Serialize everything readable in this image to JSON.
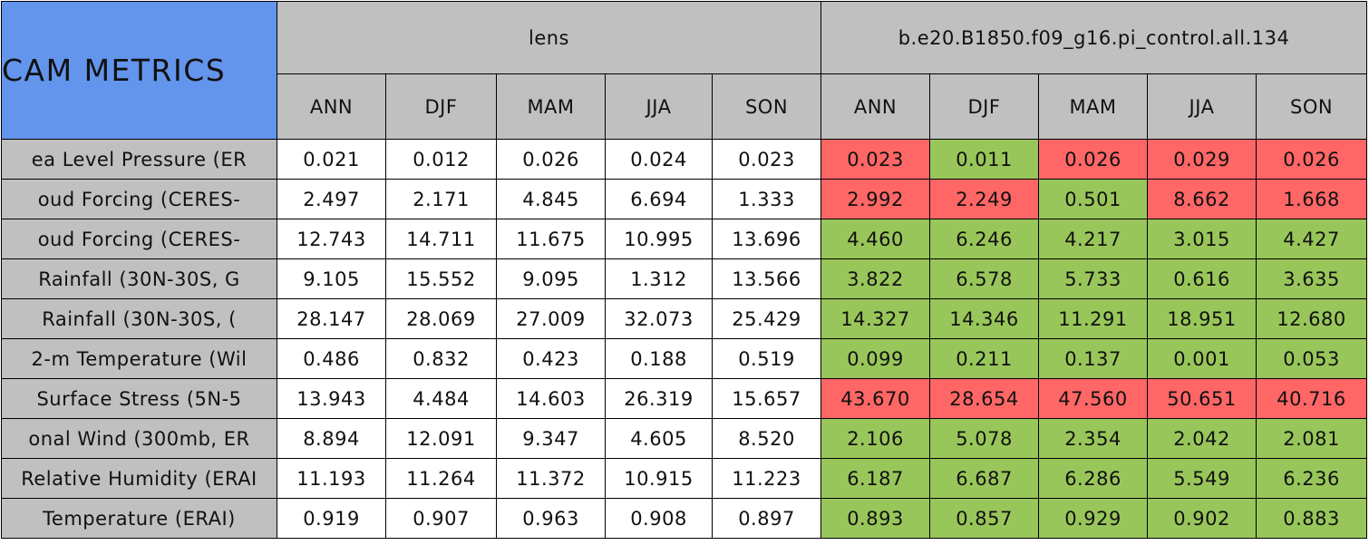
{
  "table": {
    "title": "CAM METRICS",
    "groups": [
      "lens",
      "b.e20.B1850.f09_g16.pi_control.all.134"
    ],
    "seasons": [
      [
        "ANN",
        "DJF",
        "MAM",
        "JJA",
        "SON"
      ],
      [
        "ANN",
        "DJF",
        "MAM",
        "JJA",
        "SON"
      ]
    ],
    "rows": [
      {
        "label": "ea Level Pressure (ER",
        "values": [
          "0.021",
          "0.012",
          "0.026",
          "0.024",
          "0.023",
          "0.023",
          "0.011",
          "0.026",
          "0.029",
          "0.026"
        ],
        "colors": [
          "#ffffff",
          "#ffffff",
          "#ffffff",
          "#ffffff",
          "#ffffff",
          "#ff6666",
          "#99c65a",
          "#ff6666",
          "#ff6666",
          "#ff6666"
        ]
      },
      {
        "label": "oud Forcing (CERES-",
        "values": [
          "2.497",
          "2.171",
          "4.845",
          "6.694",
          "1.333",
          "2.992",
          "2.249",
          "0.501",
          "8.662",
          "1.668"
        ],
        "colors": [
          "#ffffff",
          "#ffffff",
          "#ffffff",
          "#ffffff",
          "#ffffff",
          "#ff6666",
          "#ff6666",
          "#99c65a",
          "#ff6666",
          "#ff6666"
        ]
      },
      {
        "label": "oud Forcing (CERES-",
        "values": [
          "12.743",
          "14.711",
          "11.675",
          "10.995",
          "13.696",
          "4.460",
          "6.246",
          "4.217",
          "3.015",
          "4.427"
        ],
        "colors": [
          "#ffffff",
          "#ffffff",
          "#ffffff",
          "#ffffff",
          "#ffffff",
          "#99c65a",
          "#99c65a",
          "#99c65a",
          "#99c65a",
          "#99c65a"
        ]
      },
      {
        "label": "Rainfall (30N-30S, G",
        "values": [
          "9.105",
          "15.552",
          "9.095",
          "1.312",
          "13.566",
          "3.822",
          "6.578",
          "5.733",
          "0.616",
          "3.635"
        ],
        "colors": [
          "#ffffff",
          "#ffffff",
          "#ffffff",
          "#ffffff",
          "#ffffff",
          "#99c65a",
          "#99c65a",
          "#99c65a",
          "#99c65a",
          "#99c65a"
        ]
      },
      {
        "label": "Rainfall (30N-30S, (",
        "values": [
          "28.147",
          "28.069",
          "27.009",
          "32.073",
          "25.429",
          "14.327",
          "14.346",
          "11.291",
          "18.951",
          "12.680"
        ],
        "colors": [
          "#ffffff",
          "#ffffff",
          "#ffffff",
          "#ffffff",
          "#ffffff",
          "#99c65a",
          "#99c65a",
          "#99c65a",
          "#99c65a",
          "#99c65a"
        ]
      },
      {
        "label": "2-m Temperature (Wil",
        "values": [
          "0.486",
          "0.832",
          "0.423",
          "0.188",
          "0.519",
          "0.099",
          "0.211",
          "0.137",
          "0.001",
          "0.053"
        ],
        "colors": [
          "#ffffff",
          "#ffffff",
          "#ffffff",
          "#ffffff",
          "#ffffff",
          "#99c65a",
          "#99c65a",
          "#99c65a",
          "#99c65a",
          "#99c65a"
        ]
      },
      {
        "label": "Surface Stress (5N-5",
        "values": [
          "13.943",
          "4.484",
          "14.603",
          "26.319",
          "15.657",
          "43.670",
          "28.654",
          "47.560",
          "50.651",
          "40.716"
        ],
        "colors": [
          "#ffffff",
          "#ffffff",
          "#ffffff",
          "#ffffff",
          "#ffffff",
          "#ff6666",
          "#ff6666",
          "#ff6666",
          "#ff6666",
          "#ff6666"
        ]
      },
      {
        "label": "onal Wind (300mb, ER",
        "values": [
          "8.894",
          "12.091",
          "9.347",
          "4.605",
          "8.520",
          "2.106",
          "5.078",
          "2.354",
          "2.042",
          "2.081"
        ],
        "colors": [
          "#ffffff",
          "#ffffff",
          "#ffffff",
          "#ffffff",
          "#ffffff",
          "#99c65a",
          "#99c65a",
          "#99c65a",
          "#99c65a",
          "#99c65a"
        ]
      },
      {
        "label": "Relative Humidity (ERAI",
        "values": [
          "11.193",
          "11.264",
          "11.372",
          "10.915",
          "11.223",
          "6.187",
          "6.687",
          "6.286",
          "5.549",
          "6.236"
        ],
        "colors": [
          "#ffffff",
          "#ffffff",
          "#ffffff",
          "#ffffff",
          "#ffffff",
          "#99c65a",
          "#99c65a",
          "#99c65a",
          "#99c65a",
          "#99c65a"
        ]
      },
      {
        "label": "Temperature (ERAI)",
        "values": [
          "0.919",
          "0.907",
          "0.963",
          "0.908",
          "0.897",
          "0.893",
          "0.857",
          "0.929",
          "0.902",
          "0.883"
        ],
        "colors": [
          "#ffffff",
          "#ffffff",
          "#ffffff",
          "#ffffff",
          "#ffffff",
          "#99c65a",
          "#99c65a",
          "#99c65a",
          "#99c65a",
          "#99c65a"
        ]
      }
    ]
  }
}
